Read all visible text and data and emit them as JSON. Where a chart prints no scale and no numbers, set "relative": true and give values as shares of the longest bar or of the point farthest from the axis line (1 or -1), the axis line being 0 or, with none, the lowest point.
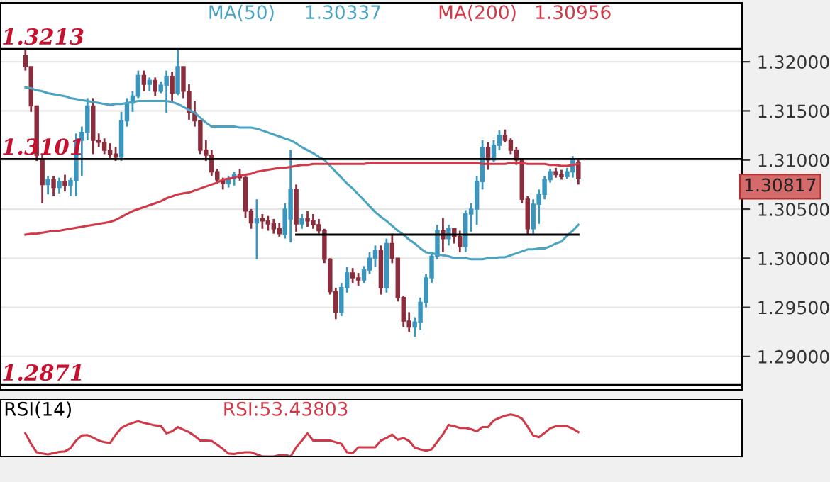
{
  "chart_data": [
    {
      "type": "candlestick",
      "categories": [
        null,
        null,
        null,
        null,
        null,
        null,
        null,
        null,
        null,
        null,
        null,
        null,
        null,
        null,
        null,
        null,
        null,
        null,
        null,
        null,
        null,
        null,
        null,
        null,
        null,
        null,
        null,
        null,
        null,
        null,
        null,
        null,
        null,
        null,
        null,
        null,
        null,
        null,
        null,
        null,
        null,
        null,
        null,
        null,
        null,
        null,
        null,
        null,
        null,
        null,
        null,
        null,
        null,
        null,
        null,
        null,
        null,
        null,
        null,
        null,
        null,
        null,
        null,
        null,
        null,
        null,
        null,
        null,
        null,
        null,
        null,
        null,
        null,
        null,
        null,
        null,
        null,
        null,
        null,
        null,
        null,
        null,
        null,
        null,
        null,
        null,
        null,
        null,
        null,
        null,
        null,
        null,
        null,
        null,
        null,
        null,
        null,
        null,
        null
      ],
      "ohlc": [
        [
          1.3206,
          1.3213,
          1.3191,
          1.3195
        ],
        [
          1.3195,
          1.3195,
          1.3149,
          1.3155
        ],
        [
          1.3155,
          1.3155,
          1.3099,
          1.3105
        ],
        [
          1.31,
          1.3105,
          1.3056,
          1.3075
        ],
        [
          1.3075,
          1.3084,
          1.3065,
          1.308
        ],
        [
          1.308,
          1.3084,
          1.3063,
          1.3072
        ],
        [
          1.3072,
          1.3082,
          1.3066,
          1.3078
        ],
        [
          1.3078,
          1.3085,
          1.3068,
          1.3074
        ],
        [
          1.3074,
          1.3082,
          1.3063,
          1.3079
        ],
        [
          1.3079,
          1.3127,
          1.3063,
          1.312
        ],
        [
          1.312,
          1.3134,
          1.3084,
          1.3128
        ],
        [
          1.3128,
          1.3163,
          1.312,
          1.3155
        ],
        [
          1.3155,
          1.3163,
          1.3106,
          1.312
        ],
        [
          1.312,
          1.3127,
          1.3113,
          1.3118
        ],
        [
          1.3118,
          1.3122,
          1.3106,
          1.311
        ],
        [
          1.311,
          1.3117,
          1.3102,
          1.3106
        ],
        [
          1.3106,
          1.3113,
          1.3099,
          1.3103
        ],
        [
          1.3103,
          1.3149,
          1.3099,
          1.314
        ],
        [
          1.314,
          1.3163,
          1.3134,
          1.3158
        ],
        [
          1.3158,
          1.317,
          1.3149,
          1.3165
        ],
        [
          1.3165,
          1.3191,
          1.3163,
          1.3186
        ],
        [
          1.3186,
          1.3191,
          1.317,
          1.3177
        ],
        [
          1.3177,
          1.3184,
          1.317,
          1.3181
        ],
        [
          1.3181,
          1.3184,
          1.3165,
          1.317
        ],
        [
          1.317,
          1.318,
          1.3168,
          1.3176
        ],
        [
          1.3176,
          1.3191,
          1.3148,
          1.3185
        ],
        [
          1.3185,
          1.319,
          1.316,
          1.3168
        ],
        [
          1.3168,
          1.3213,
          1.3166,
          1.3195
        ],
        [
          1.3195,
          1.3195,
          1.3163,
          1.317
        ],
        [
          1.317,
          1.3177,
          1.3141,
          1.3148
        ],
        [
          1.3148,
          1.316,
          1.3134,
          1.314
        ],
        [
          1.314,
          1.3141,
          1.3106,
          1.311
        ],
        [
          1.311,
          1.312,
          1.3099,
          1.3105
        ],
        [
          1.3105,
          1.311,
          1.3084,
          1.3088
        ],
        [
          1.3088,
          1.3091,
          1.3077,
          1.308
        ],
        [
          1.308,
          1.3082,
          1.307,
          1.3076
        ],
        [
          1.3076,
          1.3084,
          1.3072,
          1.3081
        ],
        [
          1.3081,
          1.3088,
          1.3074,
          1.3085
        ],
        [
          1.3085,
          1.3091,
          1.3079,
          1.3082
        ],
        [
          1.3082,
          1.3085,
          1.3041,
          1.3048
        ],
        [
          1.3048,
          1.305,
          1.303,
          1.3036
        ],
        [
          1.3036,
          1.306,
          1.2999,
          1.304
        ],
        [
          1.304,
          1.3045,
          1.303,
          1.3038
        ],
        [
          1.3038,
          1.3043,
          1.3028,
          1.3035
        ],
        [
          1.3035,
          1.304,
          1.3025,
          1.303
        ],
        [
          1.303,
          1.3036,
          1.3022,
          1.3025
        ],
        [
          1.3024,
          1.3056,
          1.302,
          1.305
        ],
        [
          1.304,
          1.311,
          1.3016,
          1.307
        ],
        [
          1.307,
          1.3075,
          1.3027,
          1.3035
        ],
        [
          1.3035,
          1.3045,
          1.303,
          1.304
        ],
        [
          1.304,
          1.3048,
          1.3032,
          1.3038
        ],
        [
          1.3038,
          1.3045,
          1.303,
          1.3034
        ],
        [
          1.3034,
          1.304,
          1.3025,
          1.3028
        ],
        [
          1.3028,
          1.303,
          1.2995,
          1.2999
        ],
        [
          1.2999,
          1.3,
          1.2963,
          1.2966
        ],
        [
          1.2966,
          1.297,
          1.2938,
          1.2945
        ],
        [
          1.2945,
          1.2975,
          1.2941,
          1.297
        ],
        [
          1.297,
          1.2991,
          1.2965,
          1.2985
        ],
        [
          1.2985,
          1.299,
          1.2975,
          1.298
        ],
        [
          1.298,
          1.2985,
          1.2972,
          1.2978
        ],
        [
          1.2978,
          1.2992,
          1.2975,
          1.2988
        ],
        [
          1.2988,
          1.3006,
          1.2984,
          1.3
        ],
        [
          1.3,
          1.3013,
          1.2991,
          1.3008
        ],
        [
          1.3008,
          1.3013,
          1.2963,
          1.297
        ],
        [
          1.297,
          1.302,
          1.2965,
          1.3015
        ],
        [
          1.3015,
          1.3025,
          1.2995,
          1.3
        ],
        [
          1.3,
          1.3,
          1.2956,
          1.296
        ],
        [
          1.296,
          1.2962,
          1.293,
          1.2936
        ],
        [
          1.2936,
          1.2945,
          1.2925,
          1.293
        ],
        [
          1.293,
          1.294,
          1.292,
          1.2935
        ],
        [
          1.2935,
          1.296,
          1.2927,
          1.2955
        ],
        [
          1.2955,
          1.2984,
          1.295,
          1.298
        ],
        [
          1.298,
          1.3006,
          1.2975,
          1.3002
        ],
        [
          1.3002,
          1.3034,
          1.2999,
          1.3028
        ],
        [
          1.3028,
          1.3041,
          1.3006,
          1.302
        ],
        [
          1.302,
          1.3034,
          1.3013,
          1.303
        ],
        [
          1.303,
          1.303,
          1.3015,
          1.3022
        ],
        [
          1.3022,
          1.3028,
          1.3006,
          1.3012
        ],
        [
          1.3012,
          1.3049,
          1.3006,
          1.3045
        ],
        [
          1.3045,
          1.3056,
          1.3027,
          1.305
        ],
        [
          1.305,
          1.3084,
          1.3034,
          1.3078
        ],
        [
          1.3078,
          1.312,
          1.307,
          1.3113
        ],
        [
          1.3113,
          1.3118,
          1.309,
          1.31
        ],
        [
          1.31,
          1.312,
          1.3098,
          1.3115
        ],
        [
          1.3115,
          1.313,
          1.311,
          1.3125
        ],
        [
          1.3125,
          1.3131,
          1.3118,
          1.312
        ],
        [
          1.312,
          1.3122,
          1.3106,
          1.311
        ],
        [
          1.311,
          1.3113,
          1.3095,
          1.31
        ],
        [
          1.31,
          1.31,
          1.3056,
          1.306
        ],
        [
          1.306,
          1.3063,
          1.3024,
          1.303
        ],
        [
          1.303,
          1.306,
          1.3025,
          1.3055
        ],
        [
          1.3055,
          1.307,
          1.3035,
          1.3065
        ],
        [
          1.3065,
          1.3084,
          1.306,
          1.308
        ],
        [
          1.308,
          1.3091,
          1.3077,
          1.3088
        ],
        [
          1.3088,
          1.3092,
          1.3082,
          1.3085
        ],
        [
          1.3085,
          1.309,
          1.308,
          1.3083
        ],
        [
          1.3083,
          1.3092,
          1.3081,
          1.3088
        ],
        [
          1.3088,
          1.3104,
          1.3082,
          1.31
        ],
        [
          1.3097,
          1.31,
          1.3075,
          1.30817
        ]
      ],
      "colors": [
        "#8b2d3c",
        "#8b2d3c",
        "#8b2d3c",
        "#8b2d3c",
        "#3a96be",
        "#8b2d3c",
        "#3a96be",
        "#8b2d3c",
        "#3a96be",
        "#3a96be",
        "#3a96be",
        "#3a96be",
        "#8b2d3c",
        "#8b2d3c",
        "#8b2d3c",
        "#8b2d3c",
        "#8b2d3c",
        "#3a96be",
        "#3a96be",
        "#3a96be",
        "#3a96be",
        "#8b2d3c",
        "#3a96be",
        "#8b2d3c",
        "#3a96be",
        "#3a96be",
        "#8b2d3c",
        "#3a96be",
        "#8b2d3c",
        "#8b2d3c",
        "#8b2d3c",
        "#8b2d3c",
        "#8b2d3c",
        "#8b2d3c",
        "#8b2d3c",
        "#8b2d3c",
        "#3a96be",
        "#3a96be",
        "#8b2d3c",
        "#8b2d3c",
        "#8b2d3c",
        "#3a96be",
        "#8b2d3c",
        "#8b2d3c",
        "#8b2d3c",
        "#8b2d3c",
        "#3a96be",
        "#3a96be",
        "#8b2d3c",
        "#3a96be",
        "#8b2d3c",
        "#8b2d3c",
        "#8b2d3c",
        "#8b2d3c",
        "#8b2d3c",
        "#8b2d3c",
        "#3a96be",
        "#3a96be",
        "#8b2d3c",
        "#8b2d3c",
        "#3a96be",
        "#3a96be",
        "#3a96be",
        "#8b2d3c",
        "#3a96be",
        "#8b2d3c",
        "#8b2d3c",
        "#8b2d3c",
        "#8b2d3c",
        "#3a96be",
        "#3a96be",
        "#3a96be",
        "#3a96be",
        "#3a96be",
        "#8b2d3c",
        "#3a96be",
        "#8b2d3c",
        "#8b2d3c",
        "#3a96be",
        "#3a96be",
        "#3a96be",
        "#3a96be",
        "#8b2d3c",
        "#3a96be",
        "#3a96be",
        "#8b2d3c",
        "#8b2d3c",
        "#8b2d3c",
        "#8b2d3c",
        "#8b2d3c",
        "#3a96be",
        "#3a96be",
        "#3a96be",
        "#3a96be",
        "#8b2d3c",
        "#8b2d3c",
        "#3a96be",
        "#3a96be",
        "#8b2d3c"
      ],
      "series": [
        {
          "type": "line",
          "name": "MA(50)",
          "color": "#4aa3c0",
          "values": [
            1.3174,
            1.3173,
            1.3171,
            1.317,
            1.3168,
            1.3167,
            1.3166,
            1.3165,
            1.3163,
            1.3162,
            1.3161,
            1.316,
            1.3159,
            1.3158,
            1.3157,
            1.3156,
            1.3157,
            1.3157,
            1.3158,
            1.3159,
            1.316,
            1.316,
            1.316,
            1.316,
            1.316,
            1.316,
            1.3159,
            1.3157,
            1.3154,
            1.3151,
            1.3148,
            1.3143,
            1.3138,
            1.3134,
            1.3134,
            1.3134,
            1.3134,
            1.3134,
            1.3133,
            1.3133,
            1.3133,
            1.3132,
            1.313,
            1.3128,
            1.3126,
            1.3124,
            1.3122,
            1.312,
            1.3117,
            1.3113,
            1.311,
            1.3107,
            1.3103,
            1.31,
            1.3094,
            1.3088,
            1.3082,
            1.3076,
            1.3071,
            1.3065,
            1.3059,
            1.3053,
            1.3047,
            1.3042,
            1.3038,
            1.3033,
            1.3028,
            1.3024,
            1.3019,
            1.3015,
            1.301,
            1.3006,
            1.3005,
            1.3004,
            1.3003,
            1.3002,
            1.3,
            1.3,
            1.3,
            1.2999,
            1.2999,
            1.2999,
            1.3,
            1.3,
            1.3001,
            1.3001,
            1.3003,
            1.3005,
            1.3007,
            1.3009,
            1.3009,
            1.301,
            1.301,
            1.3012,
            1.3015,
            1.3017,
            1.3023,
            1.3028,
            1.3034
          ]
        },
        {
          "type": "line",
          "name": "MA(200)",
          "color": "#d03a48",
          "values": [
            1.3024,
            1.3025,
            1.3025,
            1.3026,
            1.3027,
            1.3028,
            1.3028,
            1.3029,
            1.303,
            1.3031,
            1.3032,
            1.3033,
            1.3034,
            1.3035,
            1.3036,
            1.3037,
            1.3039,
            1.3042,
            1.3045,
            1.3048,
            1.305,
            1.3052,
            1.3054,
            1.3056,
            1.3058,
            1.3061,
            1.3063,
            1.3065,
            1.3066,
            1.3067,
            1.3069,
            1.3071,
            1.3073,
            1.3075,
            1.3077,
            1.308,
            1.3081,
            1.3082,
            1.3084,
            1.3085,
            1.3086,
            1.3088,
            1.3089,
            1.309,
            1.3091,
            1.3092,
            1.3092,
            1.3093,
            1.3094,
            1.3095,
            1.3095,
            1.3096,
            1.3096,
            1.3096,
            1.3096,
            1.3096,
            1.3096,
            1.3096,
            1.3096,
            1.3096,
            1.3096,
            1.3097,
            1.3097,
            1.3097,
            1.3097,
            1.3097,
            1.3097,
            1.3097,
            1.3097,
            1.3097,
            1.3097,
            1.3097,
            1.3097,
            1.3097,
            1.3097,
            1.3097,
            1.3097,
            1.3097,
            1.3097,
            1.3097,
            1.3097,
            1.3096,
            1.3096,
            1.3096,
            1.3096,
            1.3096,
            1.3097,
            1.3097,
            1.3097,
            1.3096,
            1.3096,
            1.3096,
            1.3096,
            1.3095,
            1.3095,
            1.3094,
            1.3094,
            1.3095,
            1.3096
          ]
        },
        {
          "type": "line",
          "color": "#000000",
          "values": [
            null,
            null,
            null,
            null,
            null,
            null,
            null,
            null,
            null,
            null,
            null,
            null,
            null,
            null,
            null,
            null,
            null,
            null,
            null,
            null,
            null,
            null,
            null,
            null,
            null,
            null,
            null,
            null,
            null,
            null,
            null,
            null,
            null,
            null,
            null,
            null,
            null,
            null,
            null,
            null,
            null,
            null,
            null,
            null,
            null,
            null,
            null,
            null,
            1.3024,
            1.3024,
            1.3024,
            1.3024,
            1.3024,
            1.3024,
            1.3024,
            1.3024,
            1.3024,
            1.3024,
            1.3024,
            1.3024,
            1.3024,
            1.3024,
            1.3024,
            1.3024,
            1.3024,
            1.3024,
            1.3024,
            1.3024,
            1.3024,
            1.3024,
            1.3024,
            1.3024,
            1.3024,
            1.3024,
            1.3024,
            1.3024,
            1.3024,
            1.3024,
            1.3024,
            1.3024,
            1.3024,
            1.3024,
            1.3024,
            1.3024,
            1.3024,
            1.3024,
            1.3024,
            1.3024,
            1.3024,
            1.3024,
            1.3024,
            1.3024,
            1.3024,
            1.3024,
            1.3024,
            1.3024,
            1.3024,
            1.3024,
            1.3024
          ]
        }
      ],
      "annotations": [
        "1.30337",
        "1.30956",
        "1.30817"
      ],
      "ref_lines": [
        {
          "axis": "y",
          "value": 1.3213,
          "label": "1.3213",
          "color": "#000000"
        },
        {
          "axis": "y",
          "value": 1.3101,
          "label": "1.3101",
          "color": "#000000"
        },
        {
          "axis": "y",
          "value": 1.2871,
          "label": "1.2871",
          "color": "#000000"
        }
      ],
      "ylim": [
        1.2866,
        1.326
      ],
      "yticks": [
        {
          "value": 1.29,
          "label": "1.29000"
        },
        {
          "value": 1.295,
          "label": "1.29500"
        },
        {
          "value": 1.3,
          "label": "1.30000"
        },
        {
          "value": 1.305,
          "label": "1.30500"
        },
        {
          "value": 1.31,
          "label": "1.31000"
        },
        {
          "value": 1.315,
          "label": "1.31500"
        },
        {
          "value": 1.32,
          "label": "1.32000"
        }
      ],
      "grid": "y",
      "tick_labels": "y"
    },
    {
      "type": "line",
      "title": "RSI(14)",
      "relative": true,
      "tick_labels": false,
      "categories": [
        null,
        null,
        null,
        null,
        null,
        null,
        null,
        null,
        null,
        null,
        null,
        null,
        null,
        null,
        null,
        null,
        null,
        null,
        null,
        null,
        null,
        null,
        null,
        null,
        null,
        null,
        null,
        null,
        null,
        null,
        null,
        null,
        null,
        null,
        null,
        null,
        null,
        null,
        null,
        null,
        null,
        null,
        null,
        null,
        null,
        null,
        null,
        null,
        null,
        null,
        null,
        null,
        null,
        null,
        null,
        null,
        null,
        null,
        null,
        null,
        null,
        null,
        null,
        null,
        null,
        null,
        null,
        null,
        null,
        null,
        null,
        null,
        null,
        null,
        null,
        null,
        null,
        null,
        null,
        null,
        null,
        null,
        null,
        null,
        null,
        null,
        null,
        null,
        null,
        null,
        null,
        null,
        null,
        null,
        null,
        null,
        null,
        null,
        null
      ],
      "series": [
        {
          "name": "RSI:53.43803",
          "color": "#d03a48",
          "values": [
            0.55,
            0.3,
            0.1,
            0.07,
            0.05,
            0.08,
            0.11,
            0.12,
            0.2,
            0.38,
            0.5,
            0.51,
            0.45,
            0.38,
            0.34,
            0.32,
            0.52,
            0.68,
            0.75,
            0.8,
            0.84,
            0.8,
            0.77,
            0.74,
            0.73,
            0.55,
            0.6,
            0.7,
            0.64,
            0.58,
            0.49,
            0.38,
            0.38,
            0.37,
            0.28,
            0.18,
            0.07,
            0.06,
            0.09,
            0.1,
            0.1,
            0.05,
            0,
            0,
            0,
            0.03,
            0.04,
            0,
            0.22,
            0.38,
            0.55,
            0.38,
            0.38,
            0.38,
            0.38,
            0.34,
            0.3,
            0.1,
            0.08,
            0.22,
            0.22,
            0.22,
            0.22,
            0.38,
            0.44,
            0.52,
            0.4,
            0.44,
            0.37,
            0.21,
            0.17,
            0.14,
            0.17,
            0.35,
            0.53,
            0.75,
            0.72,
            0.68,
            0.68,
            0.65,
            0.6,
            0.7,
            0.7,
            0.86,
            0.92,
            0.97,
            1,
            0.97,
            0.9,
            0.71,
            0.5,
            0.46,
            0.56,
            0.67,
            0.72,
            0.72,
            0.72,
            0.66,
            0.58
          ]
        }
      ]
    }
  ]
}
